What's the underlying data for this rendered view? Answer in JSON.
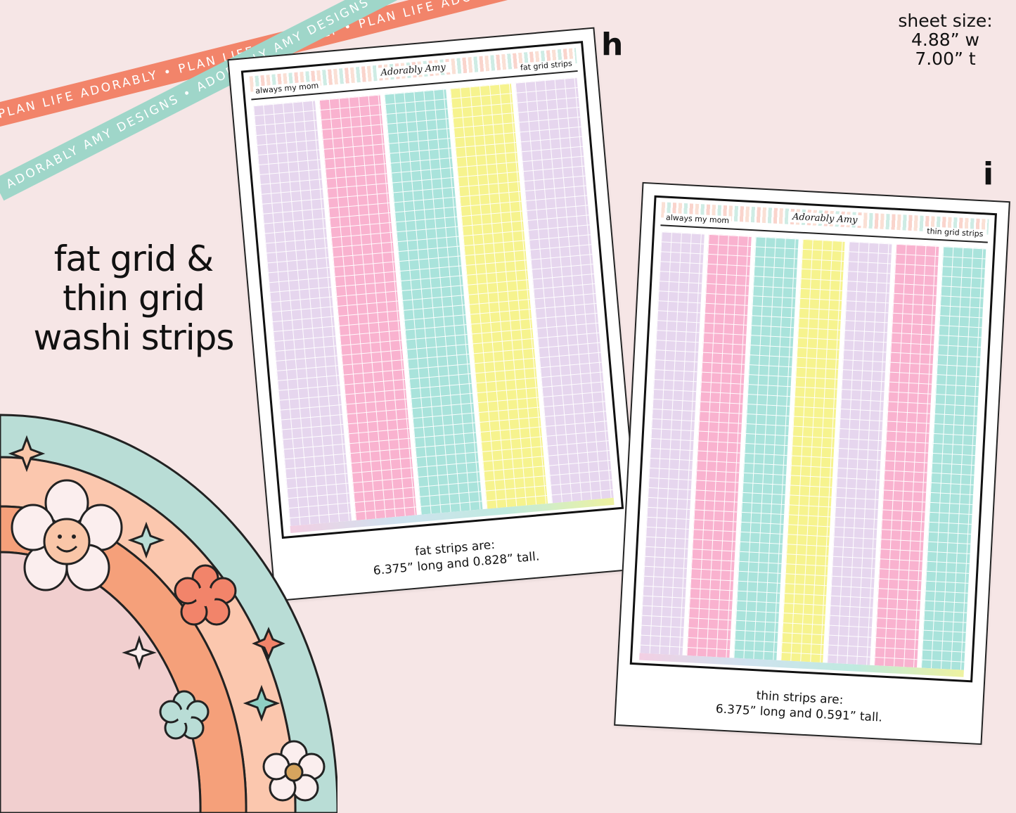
{
  "ribbons": {
    "orange_text": "PLAN LIFE ADORABLY • PLAN LIFE ADORABLY • PLAN LIFE ADORABLY •",
    "teal_text": "ADORABLY AMY DESIGNS • ADORABLY AMY DESIGNS • ADORABLY AMY DESIGNS •"
  },
  "headline": {
    "line1": "fat grid &",
    "line2": "thin grid",
    "line3": "washi strips"
  },
  "sheet_size": {
    "label": "sheet size:",
    "width": "4.88” w",
    "height": "7.00” t"
  },
  "sheet_h": {
    "letter": "h",
    "header_left": "always my mom",
    "brand": "Adorably Amy",
    "header_right": "fat grid strips",
    "strip_colors": [
      "#e6d6ee",
      "#f9b2cf",
      "#a9e3db",
      "#f6f38e",
      "#e6d6ee"
    ],
    "caption_line1": "fat strips are:",
    "caption_line2": "6.375” long and 0.828” tall."
  },
  "sheet_i": {
    "letter": "i",
    "header_left": "always my mom",
    "brand": "Adorably Amy",
    "header_right": "thin grid strips",
    "strip_colors": [
      "#e6d6ee",
      "#f9b2cf",
      "#a9e3db",
      "#f6f38e",
      "#e6d6ee",
      "#f9b2cf",
      "#a9e3db"
    ],
    "caption_line1": "thin strips are:",
    "caption_line2": "6.375” long and 0.591” tall."
  },
  "colors": {
    "background": "#f6e6e6",
    "ribbon_orange": "#f2846a",
    "ribbon_teal": "#9fd6c9",
    "rainbow_teal": "#b9ddd6",
    "rainbow_peach": "#fbc7ae",
    "rainbow_orange": "#f5a07a",
    "rainbow_pink": "#f1cfcf"
  }
}
